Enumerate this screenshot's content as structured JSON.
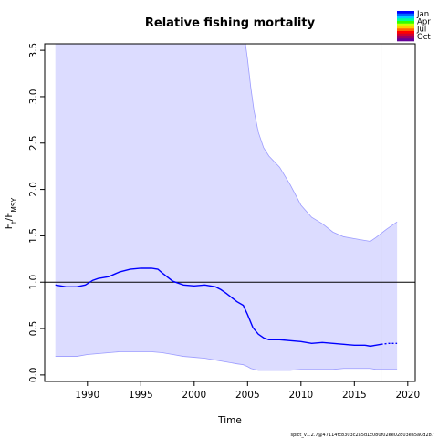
{
  "chart_data": {
    "type": "line",
    "title": "Relative fishing mortality",
    "xlabel": "Time",
    "ylabel": {
      "main": "F",
      "sub1": "t",
      "sep": "/F",
      "sub2": "MSY"
    },
    "xlim": [
      1986,
      2020.7
    ],
    "ylim": [
      -0.07,
      3.57
    ],
    "xticks": [
      1990,
      1995,
      2000,
      2005,
      2010,
      2015,
      2020
    ],
    "yticks": [
      0.0,
      0.5,
      1.0,
      1.5,
      2.0,
      2.5,
      3.0,
      3.5
    ],
    "ytick_labels": [
      "0.0",
      "0.5",
      "1.0",
      "1.5",
      "2.0",
      "2.5",
      "3.0",
      "3.5"
    ],
    "reference_line_y": 1.0,
    "vertical_marker_x": 2017.5,
    "grid": false,
    "series": [
      {
        "role": "estimate",
        "color": "#0000ff",
        "x": [
          1987.0,
          1988.0,
          1989.0,
          1989.8,
          1990.5,
          1991.0,
          1992.0,
          1993.0,
          1994.0,
          1995.0,
          1996.0,
          1996.6,
          1997.0,
          1998.0,
          1999.0,
          2000.0,
          2001.0,
          2002.0,
          2002.5,
          2003.0,
          2004.0,
          2004.6,
          2005.0,
          2005.5,
          2006.0,
          2006.5,
          2007.0,
          2008.0,
          2009.0,
          2010.0,
          2011.0,
          2012.0,
          2013.0,
          2014.0,
          2015.0,
          2016.0,
          2016.5,
          2017.0,
          2017.5
        ],
        "y": [
          0.97,
          0.95,
          0.95,
          0.97,
          1.02,
          1.04,
          1.06,
          1.11,
          1.14,
          1.15,
          1.15,
          1.14,
          1.1,
          1.01,
          0.97,
          0.96,
          0.97,
          0.95,
          0.92,
          0.88,
          0.79,
          0.75,
          0.65,
          0.51,
          0.44,
          0.4,
          0.38,
          0.38,
          0.37,
          0.36,
          0.34,
          0.35,
          0.34,
          0.33,
          0.32,
          0.32,
          0.31,
          0.32,
          0.33
        ]
      },
      {
        "role": "forecast",
        "color": "#0000ff",
        "dashed": true,
        "x": [
          2017.5,
          2018.2,
          2019.0
        ],
        "y": [
          0.33,
          0.34,
          0.34
        ]
      }
    ],
    "confidence_band": {
      "color": "#dcdcff",
      "edge_color": "#9b9bff",
      "x": [
        1987.0,
        1988.0,
        1989.0,
        1990.0,
        1991.0,
        1992.0,
        1993.0,
        1994.0,
        1995.0,
        1996.0,
        1997.0,
        1998.0,
        1999.0,
        2000.0,
        2001.0,
        2002.0,
        2003.0,
        2004.0,
        2004.6,
        2004.8,
        2005.0,
        2005.3,
        2005.6,
        2006.0,
        2006.5,
        2007.0,
        2008.0,
        2009.0,
        2010.0,
        2011.0,
        2012.0,
        2013.0,
        2014.0,
        2015.0,
        2016.0,
        2016.5,
        2017.0,
        2018.0,
        2019.0
      ],
      "upper": [
        3.6,
        3.6,
        3.6,
        3.6,
        3.6,
        3.6,
        3.6,
        3.6,
        3.6,
        3.6,
        3.6,
        3.6,
        3.6,
        3.6,
        3.6,
        3.6,
        3.6,
        3.6,
        3.6,
        3.6,
        3.4,
        3.1,
        2.85,
        2.62,
        2.45,
        2.36,
        2.24,
        2.05,
        1.83,
        1.7,
        1.63,
        1.54,
        1.49,
        1.47,
        1.45,
        1.44,
        1.48,
        1.57,
        1.65
      ],
      "lower": [
        0.2,
        0.2,
        0.2,
        0.22,
        0.23,
        0.24,
        0.25,
        0.25,
        0.25,
        0.25,
        0.24,
        0.22,
        0.2,
        0.19,
        0.18,
        0.16,
        0.14,
        0.12,
        0.11,
        0.1,
        0.09,
        0.07,
        0.06,
        0.05,
        0.05,
        0.05,
        0.05,
        0.05,
        0.06,
        0.06,
        0.06,
        0.06,
        0.07,
        0.07,
        0.07,
        0.07,
        0.06,
        0.06,
        0.06
      ]
    },
    "legend": {
      "placement": "top-right",
      "entries": [
        "Jan",
        "Apr",
        "Jul",
        "Oct"
      ],
      "colors": [
        "#0000ff",
        "#0066ff",
        "#00ccff",
        "#00ff99",
        "#33ff00",
        "#ccff00",
        "#ffcc00",
        "#ff6600",
        "#ff0000",
        "#cc0033",
        "#990066",
        "#660099"
      ]
    },
    "footer": "spict_v1.2.7@47114fc8303c2a5d1c080f02ee02803ea5a0d287"
  }
}
